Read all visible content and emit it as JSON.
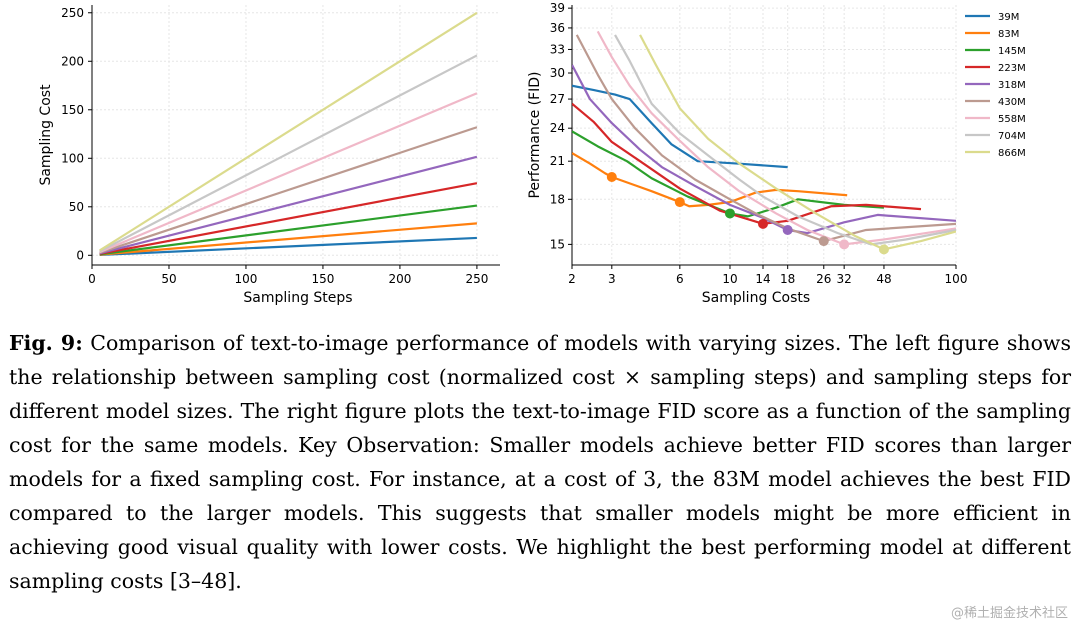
{
  "chart_data": [
    {
      "type": "line",
      "xlabel": "Sampling Steps",
      "ylabel": "Sampling Cost",
      "xlim": [
        0,
        265
      ],
      "ylim": [
        -10,
        258
      ],
      "xticks": [
        0,
        50,
        100,
        150,
        200,
        250
      ],
      "yticks": [
        0,
        50,
        100,
        150,
        200,
        250
      ],
      "series": [
        {
          "name": "39M",
          "color": "#1f77b4",
          "x": [
            5,
            250
          ],
          "y": [
            0.36,
            17.9
          ]
        },
        {
          "name": "83M",
          "color": "#ff7f0e",
          "x": [
            5,
            250
          ],
          "y": [
            0.66,
            32.9
          ]
        },
        {
          "name": "145M",
          "color": "#2ca02c",
          "x": [
            5,
            250
          ],
          "y": [
            1.03,
            51.3
          ]
        },
        {
          "name": "223M",
          "color": "#d62728",
          "x": [
            5,
            250
          ],
          "y": [
            1.49,
            74.3
          ]
        },
        {
          "name": "318M",
          "color": "#9467bd",
          "x": [
            5,
            250
          ],
          "y": [
            2.03,
            101.5
          ]
        },
        {
          "name": "430M",
          "color": "#bc9a90",
          "x": [
            5,
            250
          ],
          "y": [
            2.64,
            132
          ]
        },
        {
          "name": "558M",
          "color": "#f0b8c8",
          "x": [
            5,
            250
          ],
          "y": [
            3.34,
            167
          ]
        },
        {
          "name": "704M",
          "color": "#c7c7c7",
          "x": [
            5,
            250
          ],
          "y": [
            4.12,
            206
          ]
        },
        {
          "name": "866M",
          "color": "#dbdb8d",
          "x": [
            5,
            250
          ],
          "y": [
            5.0,
            250
          ]
        }
      ]
    },
    {
      "type": "line",
      "xlabel": "Sampling Costs",
      "ylabel": "Performance (FID)",
      "xscale": "log",
      "yscale": "log",
      "xlim": [
        2,
        100
      ],
      "ylim": [
        13.8,
        39.5
      ],
      "xticks": [
        2,
        3,
        6,
        10,
        14,
        18,
        26,
        32,
        48,
        100
      ],
      "yticks": [
        15,
        18,
        21,
        24,
        27,
        30,
        33,
        36,
        39
      ],
      "legend_position": "upper right",
      "series": [
        {
          "name": "39M",
          "color": "#1f77b4",
          "x": [
            2.0,
            2.5,
            3.1,
            3.6,
            4.5,
            5.5,
            7.2,
            10.8,
            18.0
          ],
          "y": [
            28.5,
            28.0,
            27.5,
            27.0,
            24.5,
            22.5,
            21.0,
            20.8,
            20.5
          ]
        },
        {
          "name": "83M",
          "color": "#ff7f0e",
          "x": [
            2.0,
            2.4,
            2.8,
            3.0,
            3.6,
            4.5,
            6.0,
            6.6,
            8.0,
            10.0,
            13.0,
            16.0,
            20.0,
            33.0
          ],
          "y": [
            21.7,
            20.8,
            20.0,
            19.7,
            19.2,
            18.6,
            17.8,
            17.5,
            17.6,
            17.8,
            18.5,
            18.7,
            18.6,
            18.3
          ]
        },
        {
          "name": "145M",
          "color": "#2ca02c",
          "x": [
            2.0,
            2.6,
            3.5,
            4.5,
            6.5,
            10.0,
            12.0,
            16.0,
            20.0,
            32.0,
            48.0
          ],
          "y": [
            23.7,
            22.3,
            21.0,
            19.6,
            18.2,
            17.0,
            16.8,
            17.4,
            18.0,
            17.6,
            17.4
          ]
        },
        {
          "name": "223M",
          "color": "#d62728",
          "x": [
            2.0,
            2.5,
            3.0,
            4.0,
            6.0,
            9.0,
            14.0,
            18.0,
            28.0,
            40.0,
            70.0
          ],
          "y": [
            26.5,
            24.6,
            22.7,
            21.0,
            18.8,
            17.2,
            16.3,
            16.5,
            17.5,
            17.6,
            17.3
          ]
        },
        {
          "name": "318M",
          "color": "#9467bd",
          "x": [
            2.0,
            2.4,
            3.0,
            4.0,
            5.0,
            7.0,
            10.0,
            14.0,
            18.0,
            22.0,
            32.0,
            45.0,
            100.0
          ],
          "y": [
            31.0,
            27.0,
            24.5,
            22.0,
            20.5,
            19.0,
            17.6,
            16.7,
            15.9,
            15.7,
            16.4,
            16.9,
            16.5
          ]
        },
        {
          "name": "430M",
          "color": "#bc9a90",
          "x": [
            2.1,
            2.6,
            3.0,
            3.8,
            5.0,
            7.0,
            10.0,
            13.0,
            18.0,
            26.0,
            40.0,
            100.0
          ],
          "y": [
            35.0,
            29.8,
            27.0,
            24.0,
            21.5,
            19.5,
            18.0,
            17.0,
            16.0,
            15.2,
            15.9,
            16.3
          ]
        },
        {
          "name": "558M",
          "color": "#f0b8c8",
          "x": [
            2.6,
            3.0,
            3.6,
            4.5,
            6.0,
            8.0,
            11.0,
            16.0,
            22.0,
            32.0,
            48.0,
            100.0
          ],
          "y": [
            35.5,
            32.0,
            28.5,
            25.5,
            22.8,
            20.5,
            18.6,
            17.0,
            15.9,
            15.0,
            15.3,
            16.0
          ]
        },
        {
          "name": "704M",
          "color": "#c7c7c7",
          "x": [
            3.1,
            3.6,
            4.5,
            6.0,
            8.0,
            11.0,
            14.0,
            20.0,
            30.0,
            42.0,
            60.0,
            100.0
          ],
          "y": [
            35.0,
            31.5,
            26.5,
            23.5,
            21.5,
            19.5,
            18.2,
            16.8,
            15.7,
            15.0,
            15.3,
            15.9
          ]
        },
        {
          "name": "866M",
          "color": "#dbdb8d",
          "x": [
            4.0,
            4.7,
            6.0,
            8.0,
            11.0,
            16.0,
            24.0,
            36.0,
            48.0,
            70.0,
            100.0
          ],
          "y": [
            35.0,
            31.0,
            26.0,
            23.0,
            20.8,
            18.8,
            17.0,
            15.5,
            14.7,
            15.2,
            15.8
          ]
        }
      ],
      "highlighted_points": [
        {
          "model": "83M",
          "color": "#ff7f0e",
          "x": 3,
          "y": 19.7
        },
        {
          "model": "83M",
          "color": "#ff7f0e",
          "x": 6,
          "y": 17.8
        },
        {
          "model": "145M",
          "color": "#2ca02c",
          "x": 10,
          "y": 17.0
        },
        {
          "model": "223M",
          "color": "#d62728",
          "x": 14,
          "y": 16.3
        },
        {
          "model": "318M",
          "color": "#9467bd",
          "x": 18,
          "y": 15.9
        },
        {
          "model": "430M",
          "color": "#bc9a90",
          "x": 26,
          "y": 15.2
        },
        {
          "model": "558M",
          "color": "#f0b8c8",
          "x": 32,
          "y": 15.0
        },
        {
          "model": "866M",
          "color": "#dbdb8d",
          "x": 48,
          "y": 14.7
        }
      ]
    }
  ],
  "caption": {
    "label": "Fig. 9:",
    "text": "Comparison of text-to-image performance of models with varying sizes. The left figure shows the relationship between sampling cost (normalized cost × sampling steps) and sampling steps for different model sizes. The right figure plots the text-to-image FID score as a function of the sampling cost for the same models. Key Observation: Smaller models achieve better FID scores than larger models for a fixed sampling cost. For instance, at a cost of 3, the 83M model achieves the best FID compared to the larger models. This suggests that smaller models might be more efficient in achieving good visual quality with lower costs. We highlight the best performing model at different sampling costs [3–48]."
  },
  "watermark": "@稀土掘金技术社区"
}
